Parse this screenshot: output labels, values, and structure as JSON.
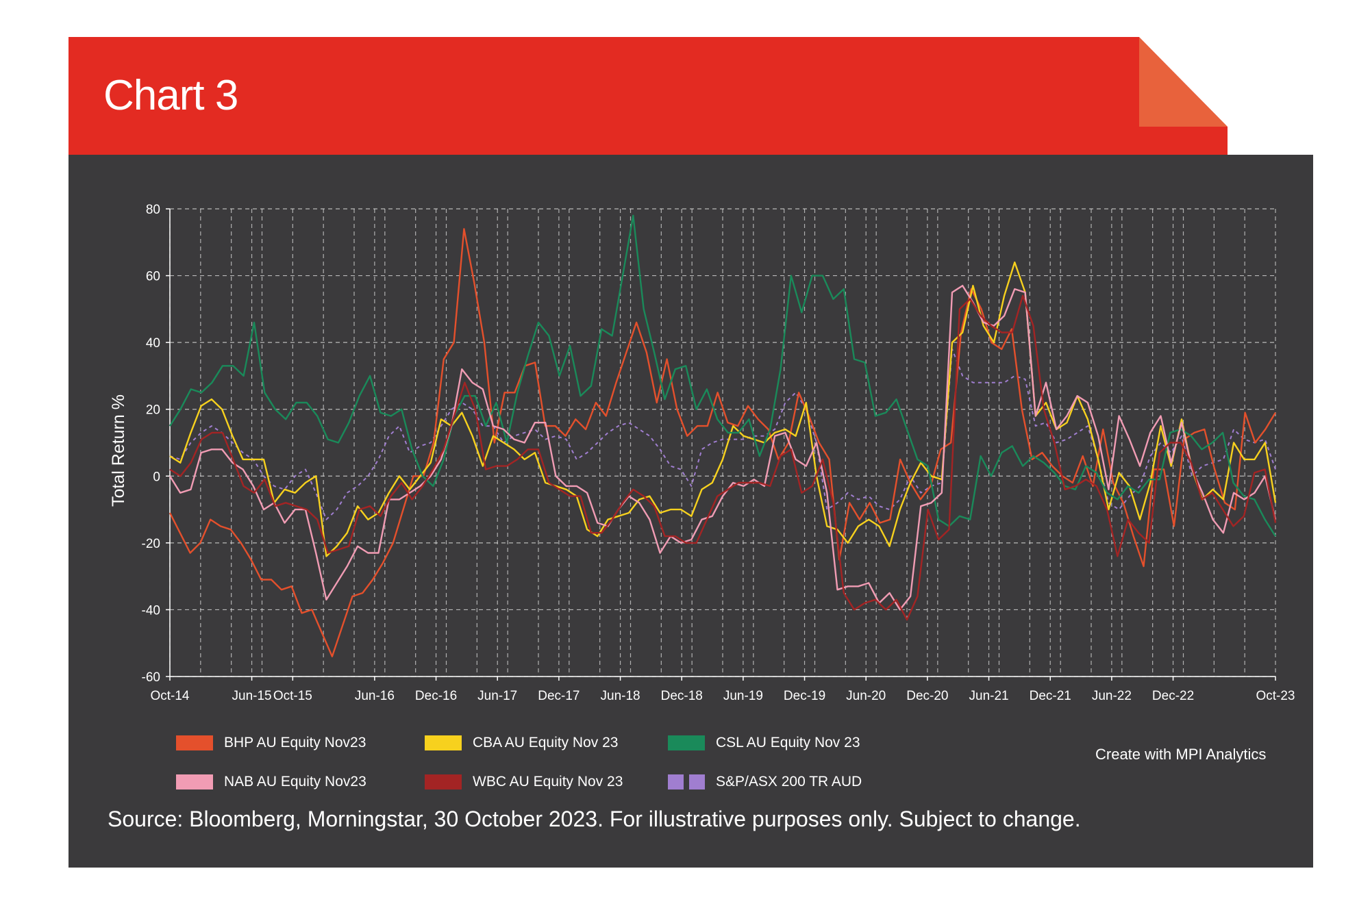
{
  "header": {
    "title": "Chart 3"
  },
  "footer": {
    "credit": "Create with MPI Analytics",
    "source": "Source: Bloomberg, Morningstar, 30 October 2023. For illustrative purposes only. Subject to change."
  },
  "chart_data": {
    "type": "line",
    "title": "",
    "ylabel": "Total Return %",
    "xlabel": "",
    "ylim": [
      -60,
      80
    ],
    "yticks": [
      80,
      60,
      40,
      20,
      0,
      -20,
      -40,
      -60
    ],
    "x_tick_labels": [
      "Oct-14",
      "Jun-15",
      "Oct-15",
      "Jun-16",
      "Dec-16",
      "Jun-17",
      "Dec-17",
      "Jun-18",
      "Dec-18",
      "Jun-19",
      "Dec-19",
      "Jun-20",
      "Dec-20",
      "Jun-21",
      "Dec-21",
      "Jun-22",
      "Dec-22",
      "Oct-23"
    ],
    "x_tick_months": [
      0,
      8,
      12,
      20,
      26,
      32,
      38,
      44,
      50,
      56,
      62,
      68,
      74,
      80,
      86,
      92,
      98,
      108
    ],
    "x_range_months": [
      0,
      108
    ],
    "grid": true,
    "legend_position": "bottom",
    "series": [
      {
        "name": "BHP AU Equity Nov23",
        "color": "#e4502c",
        "dashed": false,
        "values": [
          -11,
          -17,
          -23,
          -20,
          -13,
          -15,
          -16,
          -20,
          -25,
          -31,
          -31,
          -34,
          -33,
          -41,
          -40,
          -47,
          -54,
          -45,
          -36,
          -35,
          -31,
          -26,
          -20,
          -10,
          0,
          0,
          10,
          35,
          40,
          74,
          58,
          40,
          10,
          25,
          25,
          33,
          34,
          15,
          15,
          12,
          17,
          14,
          22,
          18,
          28,
          37,
          46,
          37,
          22,
          35,
          20,
          12,
          15,
          15,
          25,
          16,
          15,
          21,
          17,
          14,
          5,
          10,
          25,
          18,
          10,
          5,
          -25,
          -8,
          -13,
          -8,
          -14,
          -13,
          5,
          -2,
          -7,
          -3,
          8,
          10,
          43,
          56,
          50,
          40,
          38,
          44,
          20,
          5,
          7,
          3,
          0,
          -2,
          6,
          -3,
          14,
          -2,
          -8,
          -18,
          -27,
          2,
          2,
          -15,
          11,
          13,
          14,
          2,
          -8,
          -10,
          19,
          10,
          14,
          19
        ]
      },
      {
        "name": "CBA AU Equity Nov 23",
        "color": "#f7d11e",
        "dashed": false,
        "values": [
          6,
          4,
          13,
          21,
          23,
          20,
          12,
          5,
          5,
          5,
          -8,
          -4,
          -5,
          -2,
          0,
          -24,
          -21,
          -17,
          -9,
          -13,
          -11,
          -5,
          0,
          -4,
          0,
          4,
          17,
          15,
          19,
          12,
          3,
          12,
          10,
          8,
          5,
          7,
          -2,
          -3,
          -4,
          -6,
          -16,
          -18,
          -13,
          -12,
          -11,
          -7,
          -6,
          -11,
          -10,
          -10,
          -12,
          -4,
          -2,
          5,
          15,
          12,
          11,
          10,
          13,
          14,
          12,
          22,
          0,
          -15,
          -16,
          -20,
          -15,
          -13,
          -15,
          -21,
          -10,
          -2,
          4,
          0,
          -1,
          40,
          43,
          57,
          45,
          40,
          54,
          64,
          55,
          18,
          22,
          14,
          16,
          24,
          17,
          5,
          -10,
          1,
          -3,
          -13,
          -2,
          15,
          3,
          17,
          2,
          -7,
          -4,
          -7,
          10,
          5,
          5,
          10,
          -8
        ]
      },
      {
        "name": "CSL AU Equity Nov 23",
        "color": "#1a8a5a",
        "dashed": false,
        "values": [
          15,
          20,
          26,
          25,
          28,
          33,
          33,
          30,
          46,
          25,
          20,
          17,
          22,
          22,
          18,
          11,
          10,
          16,
          24,
          30,
          19,
          18,
          20,
          8,
          0,
          -3,
          5,
          18,
          24,
          24,
          15,
          22,
          10,
          25,
          36,
          46,
          42,
          30,
          39,
          24,
          27,
          44,
          42,
          60,
          78,
          50,
          37,
          23,
          32,
          33,
          20,
          26,
          17,
          13,
          13,
          17,
          6,
          14,
          32,
          60,
          49,
          60,
          60,
          53,
          56,
          35,
          34,
          18,
          19,
          23,
          14,
          5,
          3,
          -13,
          -15,
          -12,
          -13,
          6,
          0,
          7,
          9,
          3,
          6,
          4,
          1,
          -3,
          -4,
          3,
          1,
          -5,
          -7,
          -3,
          -5,
          -1,
          -1,
          13,
          14,
          12,
          8,
          10,
          13,
          -2,
          -6,
          -7,
          -13,
          -18
        ]
      },
      {
        "name": "NAB AU Equity Nov23",
        "color": "#f19cb4",
        "dashed": false,
        "values": [
          0,
          -5,
          -4,
          7,
          8,
          8,
          4,
          2,
          -3,
          -10,
          -8,
          -14,
          -10,
          -10,
          -23,
          -37,
          -32,
          -27,
          -21,
          -23,
          -23,
          -7,
          -7,
          -5,
          -3,
          0,
          5,
          15,
          32,
          28,
          26,
          15,
          14,
          11,
          10,
          16,
          16,
          0,
          -3,
          -3,
          -5,
          -14,
          -15,
          -10,
          -6,
          -8,
          -13,
          -23,
          -18,
          -20,
          -19,
          -13,
          -12,
          -6,
          -2,
          -3,
          -1,
          -3,
          12,
          13,
          5,
          3,
          10,
          -5,
          -34,
          -33,
          -33,
          -32,
          -38,
          -35,
          -40,
          -36,
          -9,
          -8,
          -5,
          55,
          57,
          52,
          46,
          45,
          48,
          56,
          55,
          18,
          28,
          14,
          18,
          24,
          22,
          12,
          -4,
          18,
          11,
          3,
          13,
          18,
          4,
          16,
          2,
          -5,
          -13,
          -17,
          -5,
          -7,
          -5,
          0,
          -13
        ]
      },
      {
        "name": "WBC AU Equity Nov 23",
        "color": "#a32424",
        "dashed": false,
        "values": [
          2,
          0,
          4,
          11,
          13,
          13,
          5,
          -3,
          -5,
          -1,
          -9,
          -8,
          -9,
          -10,
          -13,
          -23,
          -22,
          -21,
          -10,
          -9,
          -12,
          -6,
          -2,
          -7,
          -3,
          2,
          8,
          18,
          28,
          20,
          2,
          3,
          3,
          5,
          8,
          8,
          -2,
          -4,
          -6,
          -6,
          -17,
          -17,
          -13,
          -8,
          -4,
          -6,
          -9,
          -18,
          -18,
          -20,
          -20,
          -13,
          -6,
          -4,
          -2,
          -2,
          -2,
          -3,
          6,
          8,
          -5,
          -3,
          5,
          -8,
          -35,
          -40,
          -38,
          -37,
          -40,
          -37,
          -43,
          -36,
          -10,
          -19,
          -16,
          50,
          53,
          48,
          45,
          43,
          43,
          54,
          45,
          20,
          10,
          -4,
          -3,
          -1,
          -3,
          -10,
          -24,
          -13,
          -17,
          -20,
          7,
          10,
          10,
          4,
          -7,
          -5,
          -10,
          -15,
          -12,
          1,
          2,
          -14
        ]
      },
      {
        "name": "S&P/ASX 200 TR AUD",
        "color": "#a07ed0",
        "dashed": true,
        "values": [
          6,
          5,
          10,
          13,
          15,
          13,
          10,
          7,
          5,
          0,
          -3,
          -4,
          0,
          2,
          -5,
          -13,
          -10,
          -5,
          -3,
          0,
          5,
          12,
          15,
          7,
          9,
          10,
          15,
          20,
          22,
          20,
          15,
          15,
          10,
          12,
          13,
          14,
          11,
          12,
          11,
          5,
          7,
          10,
          13,
          15,
          16,
          14,
          12,
          8,
          3,
          2,
          -3,
          8,
          10,
          11,
          11,
          11,
          12,
          12,
          14,
          22,
          25,
          20,
          10,
          -10,
          -8,
          -5,
          -7,
          -6,
          -9,
          -10,
          -7,
          0,
          -5,
          -3,
          -2,
          38,
          30,
          28,
          28,
          28,
          28,
          30,
          29,
          15,
          16,
          10,
          11,
          13,
          15,
          5,
          -8,
          -10,
          -6,
          -3,
          6,
          10,
          7,
          12,
          0,
          3,
          4,
          5,
          14,
          11,
          10,
          11,
          2
        ]
      }
    ]
  }
}
